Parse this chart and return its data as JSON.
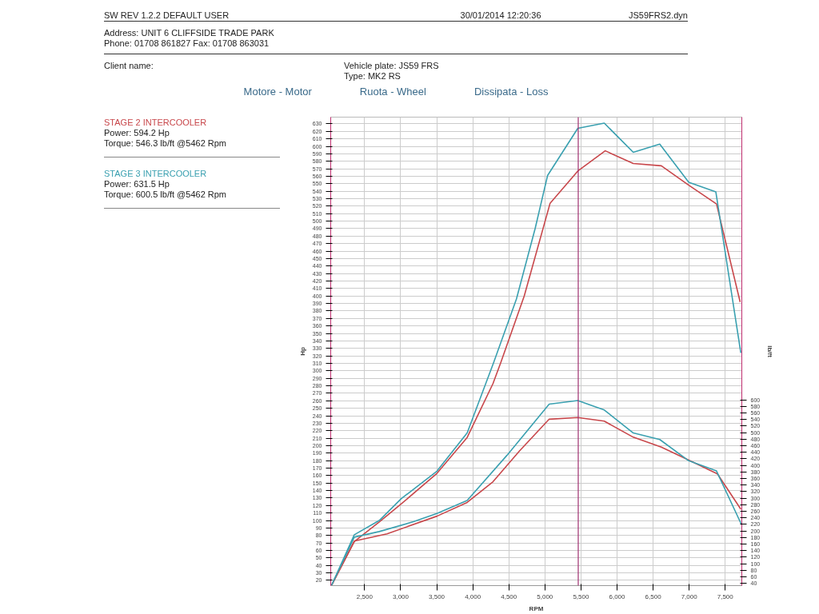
{
  "chart_data": {
    "type": "line",
    "annotations": [
      "SW REV 1.2.2  DEFAULT USER",
      "30/01/2014 12:20:36",
      "JS59FRS2.dyn",
      "Address: UNIT 6 CLIFFSIDE TRADE PARK",
      "Phone: 01708 861827 Fax: 01708 863031",
      "Client name:",
      "Vehicle plate: JS59 FRS",
      "Type: MK2 RS",
      "Motore - Motor",
      "Ruota - Wheel",
      "Dissipata - Loss",
      "Power: 594.2 Hp",
      "Torque: 546.3 lb/ft @5462 Rpm",
      "Power: 631.5 Hp",
      "Torque: 600.5 lb/ft @5462 Rpm"
    ],
    "xlabel": "RPM",
    "ylabel": "Hp",
    "y2label": "lb/ft",
    "xlim": [
      2030,
      7730
    ],
    "ylim": [
      13,
      639
    ],
    "y2lim": [
      33,
      1463
    ],
    "xticks": [
      {
        "value": 2500,
        "label": "2,500"
      },
      {
        "value": 3000,
        "label": "3,000"
      },
      {
        "value": 3500,
        "label": "3,500"
      },
      {
        "value": 4000,
        "label": "4,000"
      },
      {
        "value": 4500,
        "label": "4,500"
      },
      {
        "value": 5000,
        "label": "5,000"
      },
      {
        "value": 5500,
        "label": "5,500"
      },
      {
        "value": 6000,
        "label": "6,000"
      },
      {
        "value": 6500,
        "label": "6,500"
      },
      {
        "value": 7000,
        "label": "7,000"
      },
      {
        "value": 7500,
        "label": "7,500"
      }
    ],
    "yticks": [
      20,
      30,
      40,
      50,
      60,
      70,
      80,
      90,
      100,
      110,
      120,
      130,
      140,
      150,
      160,
      170,
      180,
      190,
      200,
      210,
      220,
      230,
      240,
      250,
      260,
      270,
      280,
      290,
      300,
      310,
      320,
      330,
      340,
      350,
      360,
      370,
      380,
      390,
      400,
      410,
      420,
      430,
      440,
      450,
      460,
      470,
      480,
      490,
      500,
      510,
      520,
      530,
      540,
      550,
      560,
      570,
      580,
      590,
      600,
      610,
      620,
      630
    ],
    "y2ticks": [
      40,
      60,
      80,
      100,
      120,
      140,
      160,
      180,
      200,
      220,
      240,
      260,
      280,
      300,
      320,
      340,
      360,
      380,
      400,
      420,
      440,
      460,
      480,
      500,
      520,
      540,
      560,
      580,
      600
    ],
    "grid": true,
    "line_style": "solid",
    "ref_lines": [
      {
        "axis": "x",
        "value": 5462,
        "color": "#a03070"
      }
    ],
    "series": [
      {
        "name": "STAGE 2 INTERCOOLER",
        "color": "#c8474b",
        "x": [
          2040,
          2357,
          2703,
          3006,
          3503,
          3922,
          4280,
          4388,
          4713,
          5072,
          5456,
          5836,
          6225,
          6614,
          6994,
          7379,
          7707
        ],
        "values": [
          13,
          72,
          98,
          122,
          163,
          211,
          283,
          311,
          400,
          524,
          567,
          594,
          577,
          574,
          548,
          523,
          392
        ]
      },
      {
        "name": "STAGE 3 INTERCOOLER",
        "color": "#3aa0b0",
        "x": [
          2040,
          2357,
          2703,
          3006,
          3503,
          3922,
          4289,
          4605,
          4864,
          5037,
          5456,
          5823,
          6225,
          6592,
          6994,
          7370,
          7716
        ],
        "values": [
          13,
          81,
          100,
          129,
          166,
          217,
          311,
          396,
          490,
          561,
          624,
          631,
          592,
          603,
          552,
          539,
          324
        ]
      },
      {
        "color": "#c8474b",
        "axis": "y2",
        "x": [
          2040,
          2357,
          2811,
          3503,
          3922,
          4280,
          4648,
          5059,
          5456,
          5823,
          6225,
          6614,
          6994,
          7392,
          7717
        ],
        "values": [
          33,
          169,
          191,
          245,
          287,
          350,
          444,
          541,
          546,
          535,
          486,
          456,
          416,
          374,
          266
        ]
      },
      {
        "color": "#3aa0b0",
        "axis": "y2",
        "x": [
          2040,
          2357,
          2703,
          3178,
          3503,
          3922,
          4475,
          5059,
          5456,
          5823,
          6225,
          6592,
          6994,
          7379,
          7726
        ],
        "values": [
          33,
          181,
          198,
          228,
          253,
          293,
          431,
          587,
          598,
          569,
          499,
          479,
          414,
          383,
          219
        ]
      }
    ]
  }
}
